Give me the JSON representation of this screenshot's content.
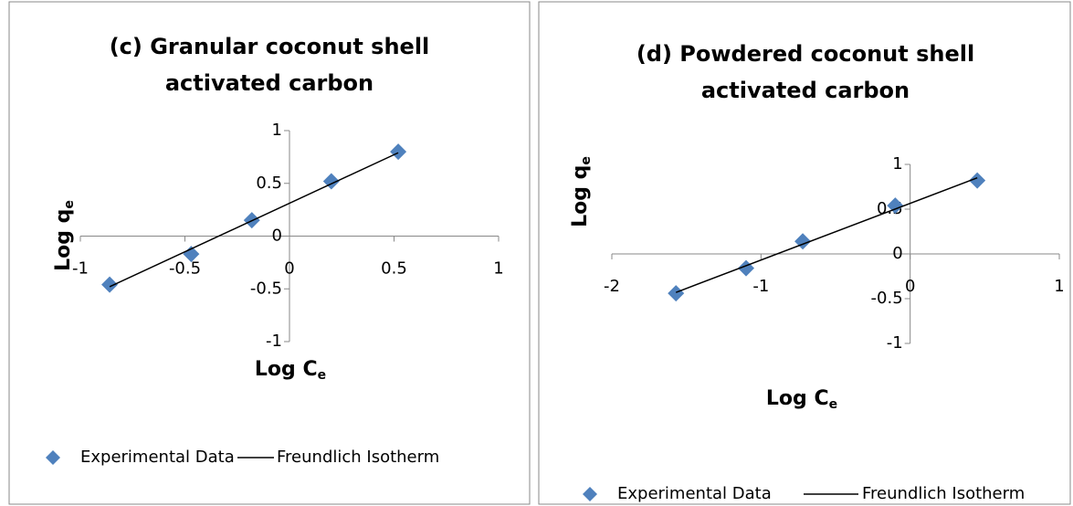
{
  "chart_data": [
    {
      "type": "scatter",
      "title": [
        "(c) Granular coconut shell",
        "activated carbon"
      ],
      "x_label": "Log C",
      "x_label_sub": "e",
      "y_label": "Log q",
      "y_label_sub": "e",
      "xlim": [
        -1,
        1
      ],
      "xticks": [
        -1,
        -0.5,
        0,
        0.5,
        1
      ],
      "ylim": [
        -1,
        1
      ],
      "yticks": [
        -1,
        -0.5,
        0,
        0.5,
        1
      ],
      "legend": "bottom",
      "series": [
        {
          "name": "Experimental Data",
          "style": "marker",
          "color": "#4f81bd",
          "x": [
            -0.86,
            -0.47,
            -0.18,
            0.2,
            0.52
          ],
          "values": [
            -0.46,
            -0.17,
            0.15,
            0.52,
            0.8
          ]
        },
        {
          "name": "Freundlich Isotherm",
          "style": "line",
          "color": "#000000",
          "x": [
            -0.86,
            0.52
          ],
          "values": [
            -0.48,
            0.79
          ]
        }
      ]
    },
    {
      "type": "scatter",
      "title": [
        "(d) Powdered coconut shell",
        "activated carbon"
      ],
      "x_label": "Log C",
      "x_label_sub": "e",
      "y_label": "Log q",
      "y_label_sub": "e",
      "xlim": [
        -2,
        1
      ],
      "xticks": [
        -2,
        -1,
        0,
        1
      ],
      "ylim": [
        -1,
        1
      ],
      "yticks": [
        -1,
        -0.5,
        0,
        0.5,
        1
      ],
      "legend": "bottom",
      "series": [
        {
          "name": "Experimental Data",
          "style": "marker",
          "color": "#4f81bd",
          "x": [
            -1.57,
            -1.1,
            -0.72,
            -0.1,
            0.45
          ],
          "values": [
            -0.44,
            -0.16,
            0.14,
            0.54,
            0.82
          ]
        },
        {
          "name": "Freundlich Isotherm",
          "style": "line",
          "color": "#000000",
          "x": [
            -1.57,
            0.45
          ],
          "values": [
            -0.43,
            0.85
          ]
        }
      ]
    }
  ]
}
